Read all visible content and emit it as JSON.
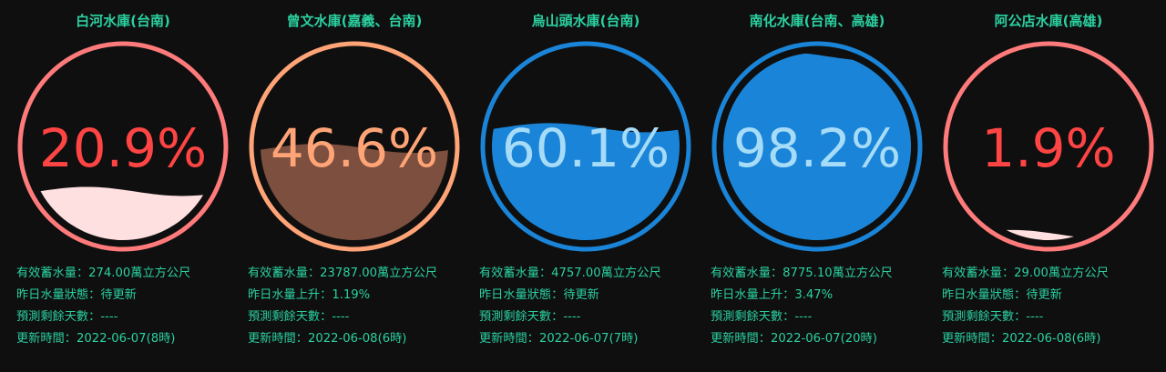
{
  "reservoirs": [
    {
      "name": "白河水庫(台南)",
      "percent": 20.9,
      "percent_label": "20.9%",
      "colors": {
        "ring": "#ff7b7b",
        "fill": "#ffe0e0",
        "text": "#ff4444"
      },
      "fill_level": 0.26,
      "lines": [
        {
          "label": "有效蓄水量",
          "value": "274.00萬立方公尺"
        },
        {
          "label": "昨日水量狀態",
          "value": "待更新"
        },
        {
          "label": "預測剩餘天數",
          "value": "----"
        },
        {
          "label": "更新時間",
          "value": "2022-06-07(8時)"
        }
      ]
    },
    {
      "name": "曾文水庫(嘉義、台南)",
      "percent": 46.6,
      "percent_label": "46.6%",
      "colors": {
        "ring": "#ffa477",
        "fill": "#7c4f3e",
        "text": "#ffa477"
      },
      "fill_level": 0.49,
      "lines": [
        {
          "label": "有效蓄水量",
          "value": "23787.00萬立方公尺"
        },
        {
          "label": "昨日水量上升",
          "value": "1.19%"
        },
        {
          "label": "預測剩餘天數",
          "value": "----"
        },
        {
          "label": "更新時間",
          "value": "2022-06-08(6時)"
        }
      ]
    },
    {
      "name": "烏山頭水庫(台南)",
      "percent": 60.1,
      "percent_label": "60.1%",
      "colors": {
        "ring": "#1a85d8",
        "fill": "#1a85d8",
        "text": "#a7dcf8"
      },
      "fill_level": 0.6,
      "lines": [
        {
          "label": "有效蓄水量",
          "value": "4757.00萬立方公尺"
        },
        {
          "label": "昨日水量狀態",
          "value": "待更新"
        },
        {
          "label": "預測剩餘天數",
          "value": "----"
        },
        {
          "label": "更新時間",
          "value": "2022-06-07(7時)"
        }
      ]
    },
    {
      "name": "南化水庫(台南、高雄)",
      "percent": 98.2,
      "percent_label": "98.2%",
      "colors": {
        "ring": "#1a85d8",
        "fill": "#1a85d8",
        "text": "#a7dcf8"
      },
      "fill_level": 0.98,
      "lines": [
        {
          "label": "有效蓄水量",
          "value": "8775.10萬立方公尺"
        },
        {
          "label": "昨日水量上升",
          "value": "3.47%"
        },
        {
          "label": "預測剩餘天數",
          "value": "----"
        },
        {
          "label": "更新時間",
          "value": "2022-06-07(20時)"
        }
      ]
    },
    {
      "name": "阿公店水庫(高雄)",
      "percent": 1.9,
      "percent_label": "1.9%",
      "colors": {
        "ring": "#ff7b7b",
        "fill": "#ffe0e0",
        "text": "#ff4444"
      },
      "fill_level": 0.03,
      "lines": [
        {
          "label": "有效蓄水量",
          "value": "29.00萬立方公尺"
        },
        {
          "label": "昨日水量狀態",
          "value": "待更新"
        },
        {
          "label": "預測剩餘天數",
          "value": "----"
        },
        {
          "label": "更新時間",
          "value": "2022-06-08(6時)"
        }
      ]
    }
  ]
}
